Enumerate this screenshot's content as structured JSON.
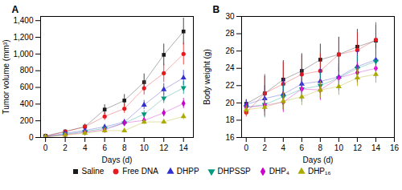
{
  "chart_data": [
    {
      "type": "line",
      "title": "A",
      "x_label": "Days (d)",
      "y_label": "Tumor volume (mm³)",
      "x": [
        0,
        2,
        4,
        6,
        8,
        10,
        12,
        14
      ],
      "xlim": [
        -0.5,
        15
      ],
      "xticks": [
        0,
        2,
        4,
        6,
        8,
        10,
        12,
        14
      ],
      "ylim": [
        0,
        1450
      ],
      "yticks": [
        0,
        200,
        400,
        600,
        800,
        {
          "value": 1000,
          "label": "1,000"
        },
        {
          "value": 1200,
          "label": "1,200"
        },
        {
          "value": 1400,
          "label": "1,400"
        }
      ],
      "grid": false,
      "legend": "bottom",
      "series": [
        {
          "name": "Saline",
          "color": "#1a1a1a",
          "marker": "square",
          "values": [
            20,
            72,
            130,
            335,
            443,
            662,
            990,
            1270
          ],
          "errors": [
            5,
            22,
            32,
            58,
            72,
            100,
            130,
            160
          ]
        },
        {
          "name": "Free DNA",
          "color": "#e8191e",
          "marker": "circle",
          "values": [
            15,
            68,
            128,
            252,
            345,
            590,
            770,
            1000
          ],
          "errors": [
            5,
            18,
            28,
            48,
            55,
            80,
            110,
            130
          ]
        },
        {
          "name": "DHPP",
          "color": "#3030d0",
          "marker": "triangle",
          "values": [
            10,
            50,
            85,
            128,
            185,
            390,
            575,
            715
          ],
          "errors": [
            4,
            14,
            20,
            28,
            32,
            55,
            72,
            90
          ]
        },
        {
          "name": "DHPSSP",
          "color": "#009980",
          "marker": "triangle-down",
          "values": [
            8,
            40,
            72,
            108,
            172,
            280,
            470,
            595
          ],
          "errors": [
            4,
            12,
            16,
            24,
            28,
            42,
            62,
            78
          ]
        },
        {
          "name": "DHP₄",
          "color": "#cc00cc",
          "marker": "diamond",
          "values": [
            8,
            32,
            62,
            93,
            175,
            205,
            295,
            408
          ],
          "errors": [
            4,
            10,
            14,
            18,
            28,
            32,
            48,
            62
          ]
        },
        {
          "name": "DHP₁₆",
          "color": "#aaaa00",
          "marker": "triangle",
          "values": [
            8,
            28,
            52,
            82,
            82,
            185,
            188,
            252
          ],
          "errors": [
            4,
            8,
            10,
            16,
            18,
            22,
            28,
            38
          ]
        }
      ]
    },
    {
      "type": "line",
      "title": "B",
      "x_label": "Days (d)",
      "y_label": "Body weight (g)",
      "x": [
        0,
        2,
        4,
        6,
        8,
        10,
        12,
        14
      ],
      "xlim": [
        -0.5,
        16
      ],
      "xticks": [
        0,
        2,
        4,
        6,
        8,
        10,
        12,
        14,
        16
      ],
      "ylim": [
        16,
        30
      ],
      "yticks": [
        16,
        18,
        20,
        22,
        24,
        26,
        28,
        30
      ],
      "grid": false,
      "series": [
        {
          "name": "Saline",
          "color": "#1a1a1a",
          "marker": "square",
          "values": [
            19.9,
            21.1,
            22.7,
            23.7,
            25.0,
            25.6,
            26.5,
            27.2
          ],
          "errors": [
            0.5,
            2.0,
            2.2,
            2.0,
            1.8,
            2.0,
            2.0,
            1.8
          ]
        },
        {
          "name": "Free DNA",
          "color": "#e8191e",
          "marker": "circle",
          "values": [
            18.9,
            21.1,
            22.2,
            23.3,
            23.7,
            25.6,
            26.1,
            27.3
          ],
          "errors": [
            0.5,
            2.2,
            2.5,
            2.2,
            2.0,
            2.0,
            2.0,
            2.0
          ]
        },
        {
          "name": "DHPP",
          "color": "#3030d0",
          "marker": "triangle",
          "values": [
            19.8,
            20.5,
            21.0,
            22.2,
            22.5,
            23.0,
            24.2,
            25.0
          ],
          "errors": [
            0.5,
            1.5,
            1.8,
            1.8,
            1.5,
            1.5,
            1.8,
            1.8
          ]
        },
        {
          "name": "DHPSSP",
          "color": "#009980",
          "marker": "triangle-down",
          "values": [
            19.5,
            19.8,
            20.7,
            21.6,
            22.0,
            22.9,
            24.0,
            24.8
          ],
          "errors": [
            0.5,
            1.5,
            1.5,
            1.5,
            1.5,
            1.5,
            1.5,
            1.5
          ]
        },
        {
          "name": "DHP₄",
          "color": "#cc00cc",
          "marker": "diamond",
          "values": [
            19.5,
            19.7,
            20.1,
            21.6,
            21.5,
            22.9,
            23.5,
            24.0
          ],
          "errors": [
            0.5,
            1.2,
            1.2,
            1.2,
            1.2,
            1.2,
            1.2,
            1.2
          ]
        },
        {
          "name": "DHP₁₆",
          "color": "#aaaa00",
          "marker": "triangle",
          "values": [
            19.2,
            19.5,
            20.2,
            20.7,
            21.5,
            21.9,
            22.9,
            23.3
          ],
          "errors": [
            0.5,
            1.0,
            1.0,
            1.0,
            1.0,
            1.0,
            1.0,
            1.0
          ]
        }
      ]
    }
  ]
}
